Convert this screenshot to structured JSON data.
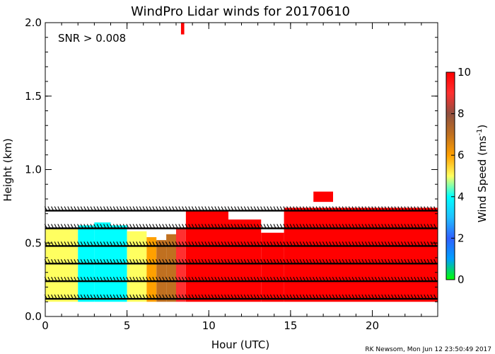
{
  "chart_data": {
    "type": "heatmap",
    "title": "WindPro Lidar winds for 20170610",
    "annotation": "SNR > 0.008",
    "xlabel": "Hour (UTC)",
    "ylabel": "Height (km)",
    "xlim": [
      0,
      24
    ],
    "ylim": [
      0.0,
      2.0
    ],
    "x_ticks": [
      0,
      5,
      10,
      15,
      20
    ],
    "x_tick_labels": [
      "0",
      "5",
      "10",
      "15",
      "20"
    ],
    "y_ticks": [
      0.0,
      0.5,
      1.0,
      1.5,
      2.0
    ],
    "y_tick_labels": [
      "0.0",
      "0.5",
      "1.0",
      "1.5",
      "2.0"
    ],
    "colorbar": {
      "label": "Wind Speed (ms",
      "label_sup": "-1",
      "label_close": ")",
      "range": [
        0,
        10
      ],
      "ticks": [
        0,
        2,
        4,
        6,
        8,
        10
      ],
      "tick_labels": [
        "0",
        "2",
        "4",
        "6",
        "8",
        "10"
      ],
      "stops": [
        {
          "v": 0,
          "color": "#00ff00"
        },
        {
          "v": 1,
          "color": "#00a0ff"
        },
        {
          "v": 2,
          "color": "#3060ff"
        },
        {
          "v": 3,
          "color": "#20c0ff"
        },
        {
          "v": 4,
          "color": "#00ffff"
        },
        {
          "v": 5,
          "color": "#ffff60"
        },
        {
          "v": 6,
          "color": "#ffa000"
        },
        {
          "v": 7,
          "color": "#c07020"
        },
        {
          "v": 8,
          "color": "#905040"
        },
        {
          "v": 9,
          "color": "#ff3030"
        },
        {
          "v": 10,
          "color": "#ff0000"
        }
      ]
    },
    "wind_speed_regions": [
      {
        "t0": 0.0,
        "t1": 2.0,
        "h0": 0.1,
        "h1": 0.6,
        "speed": 4.2
      },
      {
        "t0": 2.0,
        "t1": 3.0,
        "h0": 0.1,
        "h1": 0.62,
        "speed": 4.0
      },
      {
        "t0": 3.0,
        "t1": 4.0,
        "h0": 0.1,
        "h1": 0.64,
        "speed": 3.6
      },
      {
        "t0": 4.0,
        "t1": 5.0,
        "h0": 0.1,
        "h1": 0.62,
        "speed": 3.2
      },
      {
        "t0": 5.0,
        "t1": 6.2,
        "h0": 0.1,
        "h1": 0.58,
        "speed": 4.3
      },
      {
        "t0": 6.2,
        "t1": 6.8,
        "h0": 0.1,
        "h1": 0.54,
        "speed": 5.6
      },
      {
        "t0": 6.8,
        "t1": 7.4,
        "h0": 0.1,
        "h1": 0.52,
        "speed": 6.3
      },
      {
        "t0": 7.4,
        "t1": 8.0,
        "h0": 0.1,
        "h1": 0.56,
        "speed": 7.0
      },
      {
        "t0": 8.0,
        "t1": 8.6,
        "h0": 0.1,
        "h1": 0.6,
        "speed": 8.6
      },
      {
        "t0": 8.6,
        "t1": 11.2,
        "h0": 0.1,
        "h1": 0.72,
        "speed": 10
      },
      {
        "t0": 11.2,
        "t1": 13.2,
        "h0": 0.1,
        "h1": 0.66,
        "speed": 10
      },
      {
        "t0": 13.2,
        "t1": 14.6,
        "h0": 0.1,
        "h1": 0.57,
        "speed": 10
      },
      {
        "t0": 14.6,
        "t1": 24.0,
        "h0": 0.1,
        "h1": 0.74,
        "speed": 10
      },
      {
        "t0": 8.3,
        "t1": 8.5,
        "h0": 1.92,
        "h1": 2.0,
        "speed": 10
      },
      {
        "t0": 16.4,
        "t1": 17.6,
        "h0": 0.78,
        "h1": 0.85,
        "speed": 10
      }
    ],
    "wind_barb_heights": [
      0.12,
      0.24,
      0.36,
      0.48,
      0.6,
      0.72
    ],
    "credit": "RK Newsom, Mon Jun 12 23:50:49 2017"
  }
}
